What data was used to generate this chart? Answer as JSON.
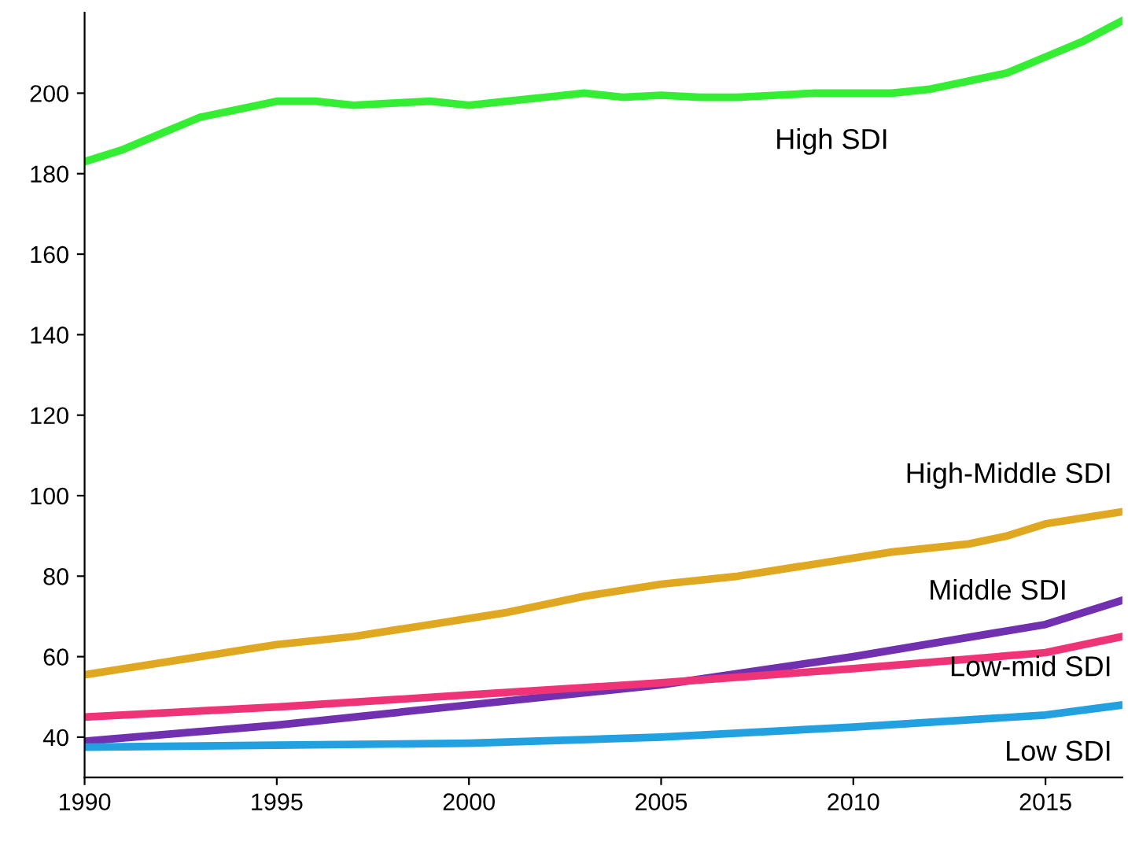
{
  "chart_data": {
    "type": "line",
    "xlim": [
      1990,
      2017
    ],
    "ylim": [
      30,
      220
    ],
    "xticks": [
      1990,
      1995,
      2000,
      2005,
      2010,
      2015
    ],
    "yticks": [
      40,
      60,
      80,
      100,
      120,
      140,
      160,
      180,
      200
    ],
    "grid": false,
    "legend": false,
    "marker": "none",
    "line_style": "solid",
    "series": [
      {
        "name": "High SDI",
        "color": "#33ee33",
        "x": [
          1990,
          1991,
          1992,
          1993,
          1994,
          1995,
          1996,
          1997,
          1998,
          1999,
          2000,
          2001,
          2002,
          2003,
          2004,
          2005,
          2006,
          2007,
          2008,
          2009,
          2010,
          2011,
          2012,
          2013,
          2014,
          2015,
          2016,
          2017
        ],
        "values": [
          183,
          186,
          190,
          194,
          196,
          198,
          198,
          197,
          197.5,
          198,
          197,
          198,
          199,
          200,
          199,
          199.5,
          199,
          199,
          199.5,
          200,
          200,
          200,
          201,
          203,
          205,
          209,
          213,
          218
        ]
      },
      {
        "name": "High-Middle SDI",
        "color": "#e0a820",
        "x": [
          1990,
          1991,
          1993,
          1995,
          1997,
          1999,
          2001,
          2003,
          2005,
          2007,
          2009,
          2011,
          2013,
          2014,
          2015,
          2017
        ],
        "values": [
          55.5,
          57,
          60,
          63,
          65,
          68,
          71,
          75,
          78,
          80,
          83,
          86,
          88,
          90,
          93,
          96
        ]
      },
      {
        "name": "Middle SDI",
        "color": "#7030b0",
        "x": [
          1990,
          1995,
          2000,
          2005,
          2010,
          2015,
          2017
        ],
        "values": [
          39,
          43,
          48,
          53,
          60,
          68,
          74
        ]
      },
      {
        "name": "Low-mid SDI",
        "color": "#ee3377",
        "x": [
          1990,
          1995,
          2000,
          2005,
          2010,
          2015,
          2017
        ],
        "values": [
          45,
          47.5,
          50.5,
          53.5,
          57,
          61,
          65
        ]
      },
      {
        "name": "Low SDI",
        "color": "#22a0e0",
        "x": [
          1990,
          1995,
          2000,
          2005,
          2010,
          2015,
          2017
        ],
        "values": [
          37.5,
          38,
          38.5,
          40,
          42.5,
          45.5,
          48
        ]
      }
    ]
  }
}
